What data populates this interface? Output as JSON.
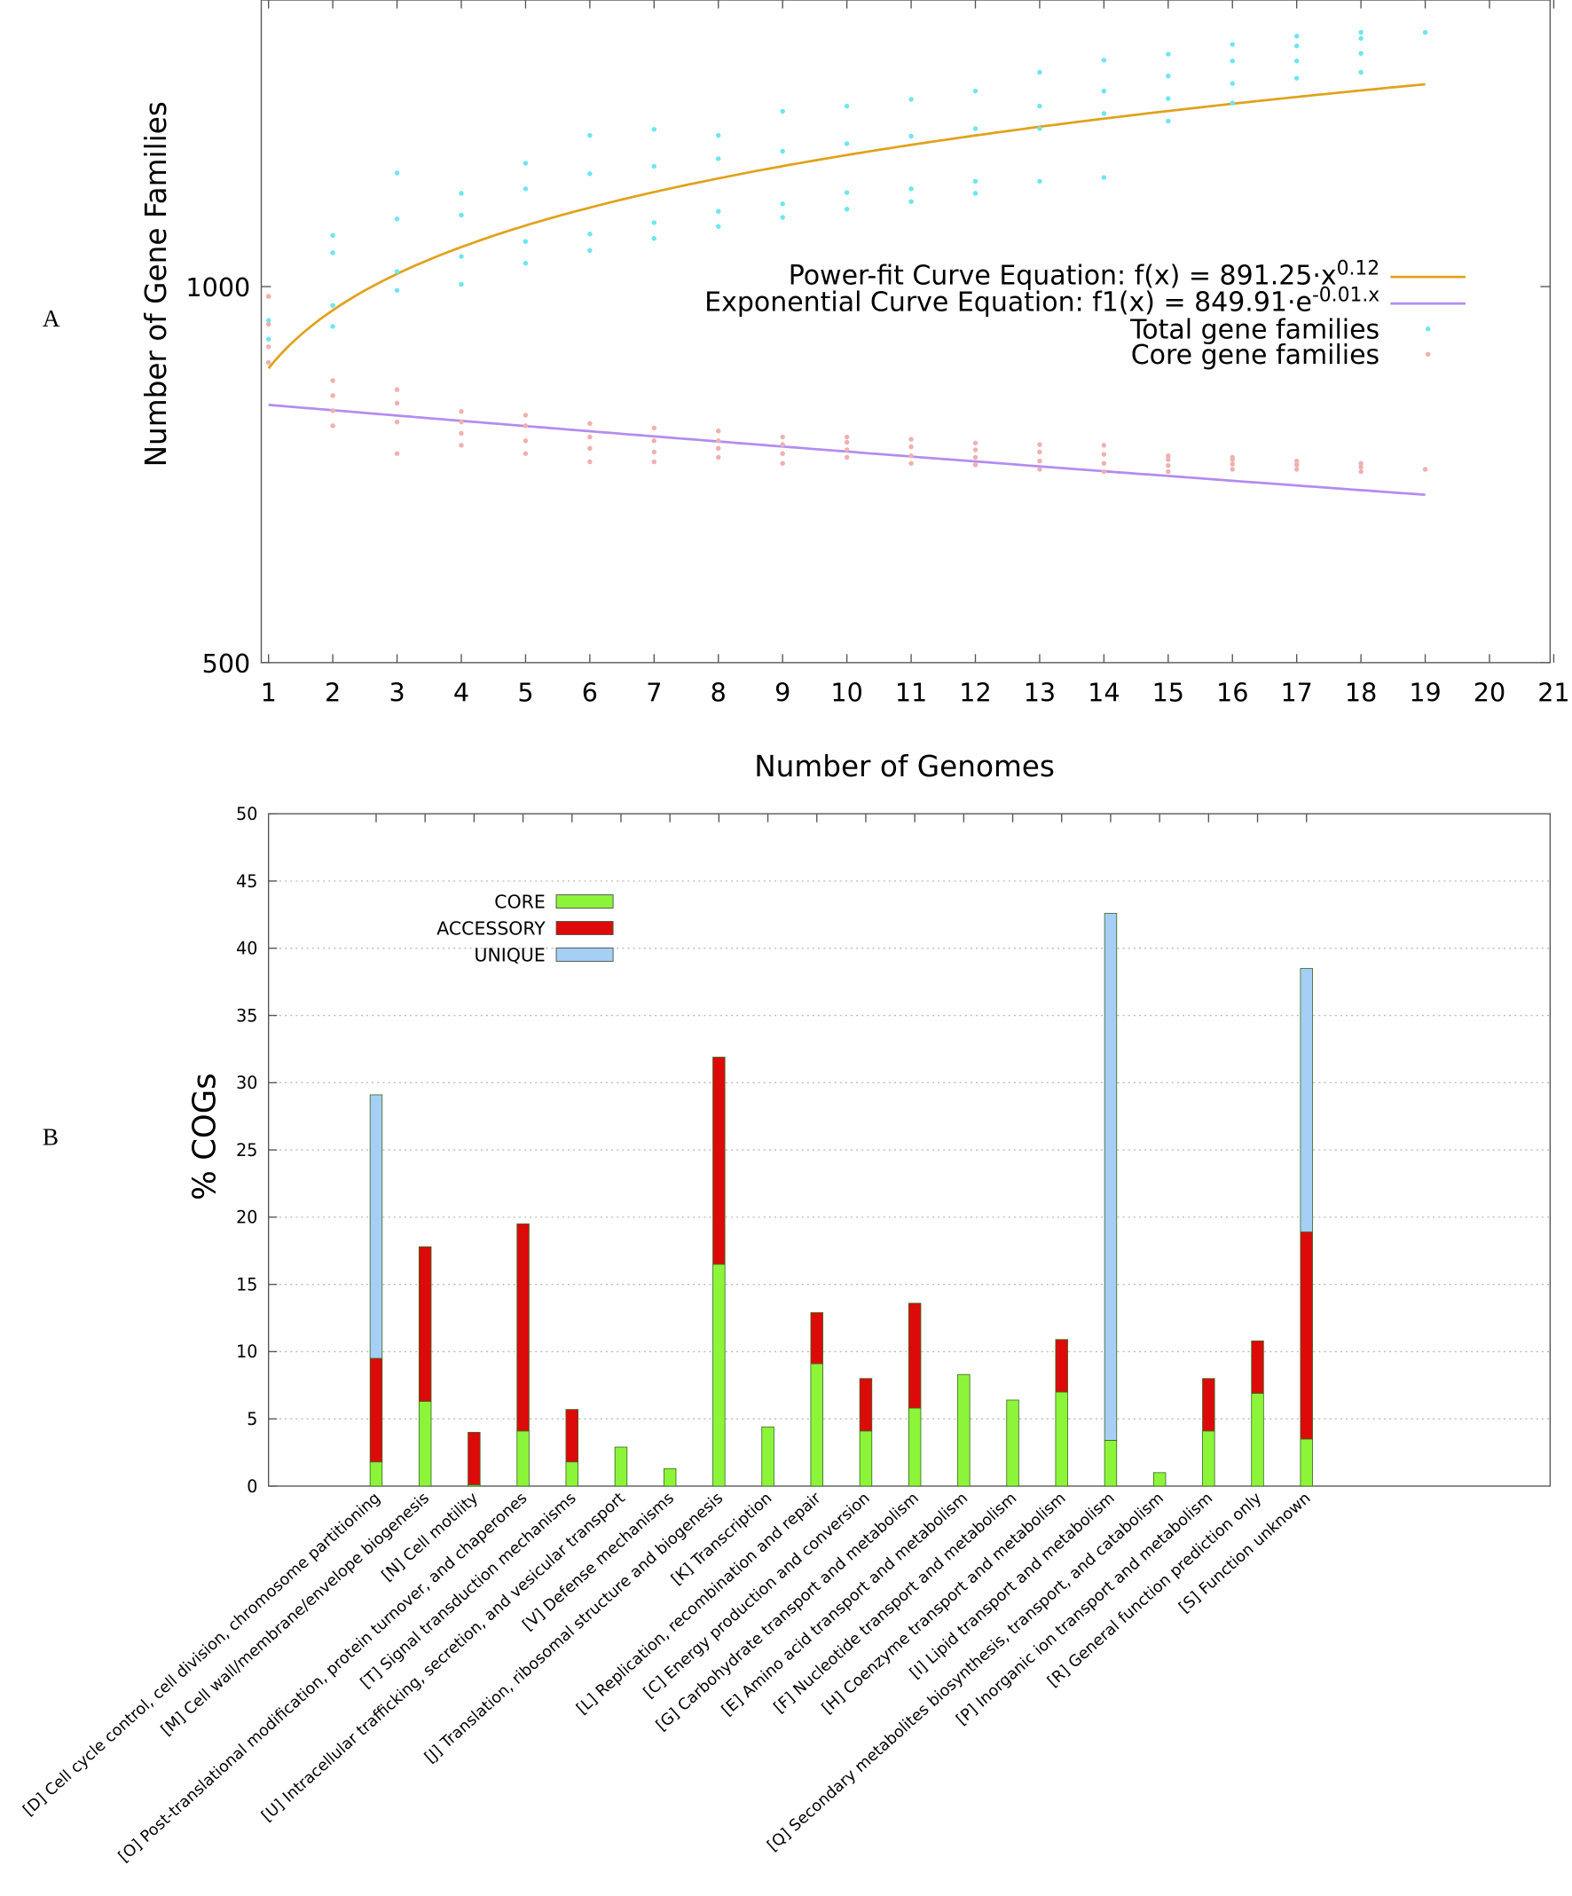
{
  "chart_data": [
    {
      "panel": "A",
      "type": "scatter",
      "title": "",
      "xlabel": "Number of Genomes",
      "ylabel": "Number of Gene Families",
      "xlim": [
        1,
        21
      ],
      "ylim": [
        500,
        1381
      ],
      "xticks": [
        1,
        2,
        3,
        4,
        5,
        6,
        7,
        8,
        9,
        10,
        11,
        12,
        13,
        14,
        15,
        16,
        17,
        18,
        19,
        20,
        21
      ],
      "yticks": [
        500,
        1000
      ],
      "grid": false,
      "legend_position": "top-right",
      "legend": [
        {
          "label": "Power-fit Curve Equation: f(x) = 891.25·x",
          "sup": "0.12",
          "kind": "line",
          "color": "#e0a21c"
        },
        {
          "label": "Exponential Curve Equation:   f1(x) = 849.91·e",
          "sup": "-0.01.x",
          "kind": "line",
          "color": "#b38cf0"
        },
        {
          "label": "Total gene families",
          "kind": "point",
          "color": "#6ee6ee"
        },
        {
          "label": "Core gene families",
          "kind": "point",
          "color": "#f0b0b0"
        }
      ],
      "curves": [
        {
          "name": "power-fit",
          "form": "power",
          "a": 891.25,
          "b": 0.12,
          "x_range": [
            1,
            19
          ],
          "color": "#e0a21c"
        },
        {
          "name": "exponential",
          "form": "exp",
          "a": 849.91,
          "b": -0.01,
          "x_range": [
            1,
            19
          ],
          "color": "#b38cf0"
        }
      ],
      "series": [
        {
          "name": "Total gene families",
          "color": "#6ee6ee",
          "points": [
            [
              1,
              899
            ],
            [
              1,
              930
            ],
            [
              1,
              955
            ],
            [
              1,
              987
            ],
            [
              2,
              947
            ],
            [
              2,
              975
            ],
            [
              2,
              1045
            ],
            [
              2,
              1068
            ],
            [
              3,
              995
            ],
            [
              3,
              1020
            ],
            [
              3,
              1090
            ],
            [
              3,
              1151
            ],
            [
              4,
              1003
            ],
            [
              4,
              1040
            ],
            [
              4,
              1095
            ],
            [
              4,
              1124
            ],
            [
              5,
              1031
            ],
            [
              5,
              1060
            ],
            [
              5,
              1130
            ],
            [
              5,
              1164
            ],
            [
              6,
              1048
            ],
            [
              6,
              1070
            ],
            [
              6,
              1150
            ],
            [
              6,
              1201
            ],
            [
              7,
              1064
            ],
            [
              7,
              1085
            ],
            [
              7,
              1160
            ],
            [
              7,
              1209
            ],
            [
              8,
              1080
            ],
            [
              8,
              1100
            ],
            [
              8,
              1170
            ],
            [
              8,
              1201
            ],
            [
              9,
              1092
            ],
            [
              9,
              1110
            ],
            [
              9,
              1180
            ],
            [
              9,
              1233
            ],
            [
              10,
              1103
            ],
            [
              10,
              1125
            ],
            [
              10,
              1190
            ],
            [
              10,
              1240
            ],
            [
              11,
              1113
            ],
            [
              11,
              1130
            ],
            [
              11,
              1200
            ],
            [
              11,
              1249
            ],
            [
              12,
              1124
            ],
            [
              12,
              1140
            ],
            [
              12,
              1210
            ],
            [
              12,
              1260
            ],
            [
              13,
              1140
            ],
            [
              13,
              1210
            ],
            [
              13,
              1240
            ],
            [
              13,
              1285
            ],
            [
              14,
              1145
            ],
            [
              14,
              1230
            ],
            [
              14,
              1260
            ],
            [
              14,
              1301
            ],
            [
              15,
              1220
            ],
            [
              15,
              1250
            ],
            [
              15,
              1280
            ],
            [
              15,
              1309
            ],
            [
              16,
              1244
            ],
            [
              16,
              1270
            ],
            [
              16,
              1300
            ],
            [
              16,
              1322
            ],
            [
              17,
              1277
            ],
            [
              17,
              1300
            ],
            [
              17,
              1320
            ],
            [
              17,
              1333
            ],
            [
              18,
              1285
            ],
            [
              18,
              1310
            ],
            [
              18,
              1330
            ],
            [
              18,
              1338
            ],
            [
              19,
              1338
            ]
          ]
        },
        {
          "name": "Core gene families",
          "color": "#f0b0b0",
          "points": [
            [
              1,
              899
            ],
            [
              1,
              920
            ],
            [
              1,
              950
            ],
            [
              1,
              987
            ],
            [
              2,
              815
            ],
            [
              2,
              835
            ],
            [
              2,
              855
            ],
            [
              2,
              875
            ],
            [
              3,
              778
            ],
            [
              3,
              820
            ],
            [
              3,
              845
            ],
            [
              3,
              863
            ],
            [
              4,
              789
            ],
            [
              4,
              805
            ],
            [
              4,
              820
            ],
            [
              4,
              834
            ],
            [
              5,
              778
            ],
            [
              5,
              795
            ],
            [
              5,
              815
            ],
            [
              5,
              829
            ],
            [
              6,
              767
            ],
            [
              6,
              785
            ],
            [
              6,
              800
            ],
            [
              6,
              818
            ],
            [
              7,
              767
            ],
            [
              7,
              780
            ],
            [
              7,
              795
            ],
            [
              7,
              812
            ],
            [
              8,
              773
            ],
            [
              8,
              785
            ],
            [
              8,
              795
            ],
            [
              8,
              808
            ],
            [
              9,
              765
            ],
            [
              9,
              778
            ],
            [
              9,
              790
            ],
            [
              9,
              800
            ],
            [
              10,
              773
            ],
            [
              10,
              783
            ],
            [
              10,
              793
            ],
            [
              10,
              800
            ],
            [
              11,
              765
            ],
            [
              11,
              775
            ],
            [
              11,
              787
            ],
            [
              11,
              797
            ],
            [
              12,
              763
            ],
            [
              12,
              773
            ],
            [
              12,
              783
            ],
            [
              12,
              792
            ],
            [
              13,
              757
            ],
            [
              13,
              768
            ],
            [
              13,
              780
            ],
            [
              13,
              790
            ],
            [
              14,
              754
            ],
            [
              14,
              765
            ],
            [
              14,
              777
            ],
            [
              14,
              789
            ],
            [
              15,
              754
            ],
            [
              15,
              762
            ],
            [
              15,
              770
            ],
            [
              15,
              775
            ],
            [
              16,
              757
            ],
            [
              16,
              764
            ],
            [
              16,
              770
            ],
            [
              16,
              773
            ],
            [
              17,
              757
            ],
            [
              17,
              763
            ],
            [
              17,
              768
            ],
            [
              18,
              754
            ],
            [
              18,
              760
            ],
            [
              18,
              765
            ],
            [
              19,
              757
            ]
          ]
        }
      ]
    },
    {
      "panel": "B",
      "type": "bar",
      "stacked": true,
      "title": "",
      "xlabel": "",
      "ylabel": "% COGs",
      "ylim": [
        0,
        50
      ],
      "yticks": [
        0,
        5,
        10,
        15,
        20,
        25,
        30,
        35,
        40,
        45,
        50
      ],
      "grid": true,
      "legend_position": "top-left",
      "categories": [
        "[D] Cell cycle control, cell division, chromosome partitioning",
        "[M] Cell wall/membrane/envelope biogenesis",
        "[N] Cell motility",
        "[O] Post-translational modification, protein turnover, and chaperones",
        "[T] Signal transduction mechanisms",
        "[U] Intracellular trafficking, secretion, and vesicular transport",
        "[V] Defense mechanisms",
        "[J] Translation, ribosomal structure and biogenesis",
        "[K] Transcription",
        "[L] Replication, recombination and repair",
        "[C] Energy production and conversion",
        "[G] Carbohydrate transport and metabolism",
        "[E] Amino acid transport and metabolism",
        "[F] Nucleotide transport and metabolism",
        "[H] Coenzyme transport and metabolism",
        "[I] Lipid transport and metabolism",
        "[Q] Secondary metabolites biosynthesis, transport, and catabolism",
        "[P] Inorganic ion transport and metabolism",
        "[R] General function prediction only",
        "[S] Function unknown"
      ],
      "series": [
        {
          "name": "CORE",
          "color": "#8cf53a",
          "values": [
            1.8,
            6.3,
            0.1,
            4.1,
            1.8,
            2.9,
            1.3,
            16.5,
            4.4,
            9.1,
            4.1,
            5.8,
            8.3,
            6.4,
            7.0,
            3.4,
            1.0,
            4.1,
            6.9,
            3.5
          ]
        },
        {
          "name": "ACCESSORY",
          "color": "#dd0a0a",
          "values": [
            7.7,
            11.5,
            3.9,
            15.4,
            3.9,
            0,
            0,
            15.4,
            0,
            3.8,
            3.9,
            7.8,
            0,
            0,
            3.9,
            0,
            0,
            3.9,
            3.9,
            15.4
          ]
        },
        {
          "name": "UNIQUE",
          "color": "#a5cff5",
          "values": [
            19.6,
            0,
            0,
            0,
            0,
            0,
            0,
            0,
            0,
            0,
            0,
            0,
            0,
            0,
            0,
            39.2,
            0,
            0,
            0,
            19.6
          ]
        }
      ]
    }
  ],
  "panel_labels": {
    "a": "A",
    "b": "B"
  }
}
